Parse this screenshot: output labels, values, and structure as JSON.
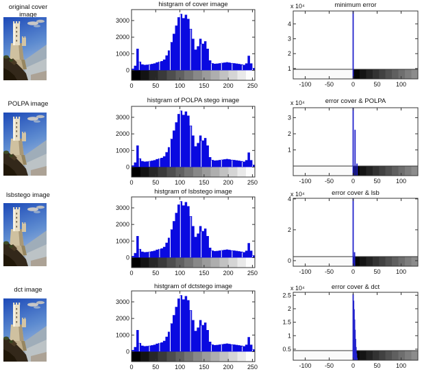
{
  "figure_type": "MATLAB steganography comparison figure",
  "colors": {
    "background": "#ffffff",
    "histogram_fill": "#0a0ae0",
    "spike_fill": "#2222cc",
    "axis": "#333333",
    "text": "#111111"
  },
  "images": [
    {
      "label": "original cover image",
      "description": "stone castle tower on rocky cliff against blue sky"
    },
    {
      "label": "POLPA image",
      "description": "stone castle tower on rocky cliff against blue sky"
    },
    {
      "label": "lsbstego image",
      "description": "stone castle tower on rocky cliff against blue sky"
    },
    {
      "label": "dct image",
      "description": "stone castle tower on rocky cliff against blue sky"
    }
  ],
  "chart_data": [
    {
      "type": "bar",
      "id": "hist-cover",
      "title": "histgram of cover image",
      "x_start": 0,
      "x_step": 5,
      "values": [
        100,
        280,
        1300,
        520,
        360,
        330,
        340,
        360,
        390,
        420,
        480,
        520,
        560,
        650,
        900,
        1200,
        1700,
        2200,
        2700,
        3200,
        3400,
        3150,
        3350,
        3100,
        2500,
        1900,
        1250,
        1450,
        1900,
        1600,
        1750,
        1300,
        600,
        430,
        400,
        410,
        430,
        450,
        470,
        490,
        470,
        440,
        430,
        410,
        390,
        360,
        330,
        420,
        880,
        420,
        140,
        60
      ],
      "xlim": [
        0,
        255
      ],
      "ylim": [
        -600,
        3660
      ],
      "xticks": [
        0,
        50,
        100,
        150,
        200,
        250
      ],
      "yticks": [
        {
          "v": 0,
          "label": "0"
        },
        {
          "v": 1000,
          "label": "1000"
        },
        {
          "v": 2000,
          "label": "2000"
        },
        {
          "v": 3000,
          "label": "3000"
        }
      ],
      "strip": "grayscale-ramp",
      "bar_color": "#0a0ae0"
    },
    {
      "type": "bar",
      "id": "err-min",
      "title": "minimum error",
      "scale_label": "x 10⁴",
      "points": [
        {
          "x": 0,
          "y": 48700
        }
      ],
      "xlim": [
        -125,
        135
      ],
      "ylim": [
        3000,
        48700
      ],
      "xticks": [
        -100,
        -50,
        0,
        50,
        100
      ],
      "yticks": [
        {
          "v": 10000,
          "label": "1"
        },
        {
          "v": 20000,
          "label": "2"
        },
        {
          "v": 30000,
          "label": "3"
        },
        {
          "v": 40000,
          "label": "4"
        }
      ],
      "strip": "split-ramp",
      "bar_color": "#2222cc"
    },
    {
      "type": "bar",
      "id": "hist-polpa",
      "title": "histgram of POLPA stego image",
      "x_start": 0,
      "x_step": 5,
      "values": [
        100,
        280,
        1300,
        520,
        360,
        330,
        340,
        360,
        390,
        420,
        480,
        520,
        560,
        650,
        900,
        1200,
        1700,
        2200,
        2700,
        3200,
        3400,
        3150,
        3350,
        3100,
        2500,
        1900,
        1250,
        1450,
        1900,
        1600,
        1750,
        1300,
        600,
        430,
        400,
        410,
        430,
        450,
        470,
        490,
        470,
        440,
        430,
        410,
        390,
        360,
        330,
        420,
        880,
        420,
        140,
        60
      ],
      "xlim": [
        0,
        255
      ],
      "ylim": [
        -600,
        3660
      ],
      "xticks": [
        0,
        50,
        100,
        150,
        200,
        250
      ],
      "yticks": [
        {
          "v": 0,
          "label": "0"
        },
        {
          "v": 1000,
          "label": "1000"
        },
        {
          "v": 2000,
          "label": "2000"
        },
        {
          "v": 3000,
          "label": "3000"
        }
      ],
      "strip": "grayscale-ramp",
      "bar_color": "#0a0ae0"
    },
    {
      "type": "bar",
      "id": "err-polpa",
      "title": "error cover & POLPA",
      "scale_label": "x 10⁴",
      "points": [
        {
          "x": 0,
          "y": 36170
        },
        {
          "x": 4,
          "y": 22500
        },
        {
          "x": 8,
          "y": 1500
        }
      ],
      "xlim": [
        -125,
        135
      ],
      "ylim": [
        -6000,
        36200
      ],
      "xticks": [
        -100,
        -50,
        0,
        50,
        100
      ],
      "yticks": [
        {
          "v": 10000,
          "label": "1"
        },
        {
          "v": 20000,
          "label": "2"
        },
        {
          "v": 30000,
          "label": "3"
        }
      ],
      "strip": "split-ramp",
      "bar_color": "#2222cc"
    },
    {
      "type": "bar",
      "id": "hist-lsb",
      "title": "histgram of lsbstego image",
      "x_start": 0,
      "x_step": 5,
      "values": [
        100,
        280,
        1300,
        520,
        360,
        330,
        340,
        360,
        390,
        420,
        480,
        520,
        560,
        650,
        900,
        1200,
        1700,
        2200,
        2700,
        3200,
        3400,
        3150,
        3350,
        3100,
        2500,
        1900,
        1250,
        1450,
        1900,
        1600,
        1750,
        1300,
        600,
        430,
        400,
        410,
        430,
        450,
        470,
        490,
        470,
        440,
        430,
        410,
        390,
        360,
        330,
        420,
        880,
        420,
        140,
        60
      ],
      "xlim": [
        0,
        255
      ],
      "ylim": [
        -600,
        3660
      ],
      "xticks": [
        0,
        50,
        100,
        150,
        200,
        250
      ],
      "yticks": [
        {
          "v": 0,
          "label": "0"
        },
        {
          "v": 1000,
          "label": "1000"
        },
        {
          "v": 2000,
          "label": "2000"
        },
        {
          "v": 3000,
          "label": "3000"
        }
      ],
      "strip": "grayscale-ramp",
      "bar_color": "#0a0ae0"
    },
    {
      "type": "bar",
      "id": "err-lsb",
      "title": "error cover & lsb",
      "scale_label": "x 10⁴",
      "points": [
        {
          "x": 0,
          "y": 40400
        },
        {
          "x": 3,
          "y": 5500
        }
      ],
      "xlim": [
        -125,
        135
      ],
      "ylim": [
        -3600,
        40400
      ],
      "xticks": [
        -100,
        -50,
        0,
        50,
        100
      ],
      "yticks": [
        {
          "v": 0,
          "label": "0"
        },
        {
          "v": 20000,
          "label": "2"
        },
        {
          "v": 40000,
          "label": "4"
        }
      ],
      "strip": "split-ramp",
      "bar_color": "#2222cc"
    },
    {
      "type": "bar",
      "id": "hist-dct",
      "title": "histgram of dctstego image",
      "x_start": 0,
      "x_step": 5,
      "values": [
        100,
        280,
        1300,
        520,
        360,
        330,
        340,
        360,
        390,
        420,
        480,
        520,
        560,
        650,
        900,
        1200,
        1700,
        2200,
        2700,
        3200,
        3400,
        3150,
        3350,
        3100,
        2500,
        1900,
        1250,
        1450,
        1900,
        1600,
        1750,
        1300,
        600,
        430,
        400,
        410,
        430,
        450,
        470,
        490,
        470,
        440,
        430,
        410,
        390,
        360,
        330,
        420,
        880,
        420,
        140,
        60
      ],
      "xlim": [
        0,
        255
      ],
      "ylim": [
        -600,
        3660
      ],
      "xticks": [
        0,
        50,
        100,
        150,
        200,
        250
      ],
      "yticks": [
        {
          "v": 0,
          "label": "0"
        },
        {
          "v": 1000,
          "label": "1000"
        },
        {
          "v": 2000,
          "label": "2000"
        },
        {
          "v": 3000,
          "label": "3000"
        }
      ],
      "strip": "grayscale-ramp",
      "bar_color": "#0a0ae0"
    },
    {
      "type": "bar",
      "id": "err-dct",
      "title": "error cover & dct",
      "scale_label": "x 10⁴",
      "points": [
        {
          "x": 0,
          "y": 25500
        },
        {
          "x": 1,
          "y": 23000
        },
        {
          "x": 2,
          "y": 19800
        },
        {
          "x": 3,
          "y": 16000
        },
        {
          "x": 4,
          "y": 12200
        },
        {
          "x": 5,
          "y": 8800
        },
        {
          "x": 6,
          "y": 5800
        },
        {
          "x": 7,
          "y": 3400
        },
        {
          "x": 8,
          "y": 1800
        },
        {
          "x": 9,
          "y": 900
        },
        {
          "x": 10,
          "y": 400
        }
      ],
      "xlim": [
        -125,
        135
      ],
      "ylim": [
        900,
        26100
      ],
      "xticks": [
        -100,
        -50,
        0,
        50,
        100
      ],
      "yticks": [
        {
          "v": 5000,
          "label": "0.5"
        },
        {
          "v": 10000,
          "label": "1"
        },
        {
          "v": 15000,
          "label": "1.5"
        },
        {
          "v": 20000,
          "label": "2"
        },
        {
          "v": 25000,
          "label": "2.5"
        }
      ],
      "strip": "split-ramp",
      "bar_color": "#2222cc"
    }
  ]
}
